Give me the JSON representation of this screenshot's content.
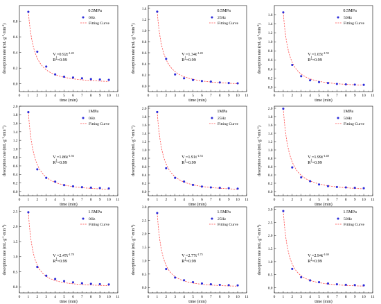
{
  "chart_data": [
    {
      "type": "scatter",
      "pressure": "0.5MPa",
      "frequency": "0Hz",
      "ylim": [
        -0.1,
        1.0
      ],
      "yticks": [
        "0.0",
        "0.2",
        "0.4",
        "0.6",
        "0.8"
      ],
      "ytick_values": [
        0,
        0.2,
        0.4,
        0.6,
        0.8
      ],
      "x": [
        1,
        2,
        3,
        4,
        5,
        6,
        7,
        8,
        9,
        10
      ],
      "y": [
        0.92,
        0.41,
        0.22,
        0.12,
        0.09,
        0.08,
        0.07,
        0.06,
        0.055,
        0.05
      ],
      "fit_a": 0.92,
      "fit_b": 1.49,
      "fit_label": {
        "v": "V",
        "sub": "t",
        "mid": "=0.92t",
        "sup": "-1.49"
      },
      "r2_label": {
        "r": "R",
        "sup": "2",
        "rest": "=0.99"
      }
    },
    {
      "type": "scatter",
      "pressure": "0.5MPa",
      "frequency": "25Hz",
      "ylim": [
        -0.1,
        1.45
      ],
      "yticks": [
        "0.0",
        "0.2",
        "0.4",
        "0.6",
        "0.8",
        "1.0",
        "1.2",
        "1.4"
      ],
      "ytick_values": [
        0,
        0.2,
        0.4,
        0.6,
        0.8,
        1.0,
        1.2,
        1.4
      ],
      "x": [
        1,
        2,
        3,
        4,
        5,
        6,
        7,
        8,
        9,
        10
      ],
      "y": [
        1.34,
        0.49,
        0.21,
        0.14,
        0.11,
        0.09,
        0.08,
        0.065,
        0.055,
        0.05
      ],
      "fit_a": 1.34,
      "fit_b": 1.49,
      "fit_label": {
        "v": "V",
        "sub": "t",
        "mid": "=1.34t",
        "sup": "-1.49"
      },
      "r2_label": {
        "r": "R",
        "sup": "2",
        "rest": "=0.99"
      }
    },
    {
      "type": "scatter",
      "pressure": "0.5MPa",
      "frequency": "50Hz",
      "ylim": [
        -0.1,
        1.8
      ],
      "yticks": [
        "0.0",
        "0.2",
        "0.4",
        "0.6",
        "0.8",
        "1.0",
        "1.2",
        "1.4",
        "1.6"
      ],
      "ytick_values": [
        0,
        0.2,
        0.4,
        0.6,
        0.8,
        1.0,
        1.2,
        1.4,
        1.6
      ],
      "x": [
        1,
        2,
        3,
        4,
        5,
        6,
        7,
        8,
        9,
        10
      ],
      "y": [
        1.65,
        0.49,
        0.24,
        0.15,
        0.11,
        0.09,
        0.07,
        0.06,
        0.055,
        0.05
      ],
      "fit_a": 1.65,
      "fit_b": 1.59,
      "fit_label": {
        "v": "V",
        "sub": "t",
        "mid": "=1.65t",
        "sup": "-1.59"
      },
      "r2_label": {
        "r": "R",
        "sup": "2",
        "rest": "=0.99"
      }
    },
    {
      "type": "scatter",
      "pressure": "1MPa",
      "frequency": "0Hz",
      "ylim": [
        -0.1,
        2.0
      ],
      "yticks": [
        "0.0",
        "0.2",
        "0.4",
        "0.6",
        "0.8",
        "1.0",
        "1.2",
        "1.4",
        "1.6",
        "1.8",
        "2.0"
      ],
      "ytick_values": [
        0,
        0.2,
        0.4,
        0.6,
        0.8,
        1.0,
        1.2,
        1.4,
        1.6,
        1.8,
        2.0
      ],
      "x": [
        1,
        2,
        3,
        4,
        5,
        6,
        7,
        8,
        9,
        10
      ],
      "y": [
        1.86,
        0.52,
        0.32,
        0.23,
        0.15,
        0.12,
        0.1,
        0.09,
        0.08,
        0.07
      ],
      "fit_a": 1.86,
      "fit_b": 1.56,
      "fit_label": {
        "v": "V",
        "sub": "t",
        "mid": "=1.86t",
        "sup": "-1.56"
      },
      "r2_label": {
        "r": "R",
        "sup": "2",
        "rest": "=0.99"
      }
    },
    {
      "type": "scatter",
      "pressure": "1MPa",
      "frequency": "25Hz",
      "ylim": [
        -0.1,
        2.05
      ],
      "yticks": [
        "0.0",
        "0.2",
        "0.4",
        "0.6",
        "0.8",
        "1.0",
        "1.2",
        "1.4",
        "1.6",
        "1.8",
        "2.0"
      ],
      "ytick_values": [
        0,
        0.2,
        0.4,
        0.6,
        0.8,
        1.0,
        1.2,
        1.4,
        1.6,
        1.8,
        2.0
      ],
      "x": [
        1,
        2,
        3,
        4,
        5,
        6,
        7,
        8,
        9,
        10
      ],
      "y": [
        1.91,
        0.56,
        0.33,
        0.24,
        0.16,
        0.12,
        0.1,
        0.09,
        0.08,
        0.07
      ],
      "fit_a": 1.91,
      "fit_b": 1.53,
      "fit_label": {
        "v": "V",
        "sub": "t",
        "mid": "=1.91t",
        "sup": "-1.53"
      },
      "r2_label": {
        "r": "R",
        "sup": "2",
        "rest": "=0.99"
      }
    },
    {
      "type": "scatter",
      "pressure": "1MPa",
      "frequency": "50Hz",
      "ylim": [
        -0.1,
        2.05
      ],
      "yticks": [
        "0.0",
        "0.2",
        "0.4",
        "0.6",
        "0.8",
        "1.0",
        "1.2",
        "1.4",
        "1.6",
        "1.8",
        "2.0"
      ],
      "ytick_values": [
        0,
        0.2,
        0.4,
        0.6,
        0.8,
        1.0,
        1.2,
        1.4,
        1.6,
        1.8,
        2.0
      ],
      "x": [
        1,
        2,
        3,
        4,
        5,
        6,
        7,
        8,
        9,
        10
      ],
      "y": [
        1.99,
        0.58,
        0.34,
        0.25,
        0.17,
        0.13,
        0.11,
        0.1,
        0.09,
        0.08
      ],
      "fit_a": 1.99,
      "fit_b": 1.48,
      "fit_label": {
        "v": "V",
        "sub": "t",
        "mid": "=1.99t",
        "sup": "-1.48"
      },
      "r2_label": {
        "r": "R",
        "sup": "2",
        "rest": "=0.99"
      }
    },
    {
      "type": "scatter",
      "pressure": "1.5MPa",
      "frequency": "0Hz",
      "ylim": [
        -0.2,
        2.65
      ],
      "yticks": [
        "0.0",
        "0.5",
        "1.0",
        "1.5",
        "2.0",
        "2.5"
      ],
      "ytick_values": [
        0,
        0.5,
        1.0,
        1.5,
        2.0,
        2.5
      ],
      "x": [
        1,
        2,
        3,
        4,
        5,
        6,
        7,
        8,
        9,
        10
      ],
      "y": [
        2.47,
        0.66,
        0.37,
        0.26,
        0.19,
        0.15,
        0.12,
        0.1,
        0.09,
        0.08
      ],
      "fit_a": 2.47,
      "fit_b": 1.78,
      "fit_label": {
        "v": "V",
        "sub": "t",
        "mid": "=2.47t",
        "sup": "-1.78"
      },
      "r2_label": {
        "r": "R",
        "sup": "2",
        "rest": "=0.99"
      }
    },
    {
      "type": "scatter",
      "pressure": "1.5MPa",
      "frequency": "25Hz",
      "ylim": [
        -0.2,
        3.0
      ],
      "yticks": [
        "0.0",
        "0.5",
        "1.0",
        "1.5",
        "2.0",
        "2.5",
        "3.0"
      ],
      "ytick_values": [
        0,
        0.5,
        1.0,
        1.5,
        2.0,
        2.5,
        3.0
      ],
      "x": [
        1,
        2,
        3,
        4,
        5,
        6,
        7,
        8,
        9,
        10
      ],
      "y": [
        2.77,
        0.69,
        0.37,
        0.27,
        0.2,
        0.15,
        0.12,
        0.1,
        0.09,
        0.08
      ],
      "fit_a": 2.77,
      "fit_b": 1.75,
      "fit_label": {
        "v": "V",
        "sub": "t",
        "mid": "=2.77t",
        "sup": "-1.75"
      },
      "r2_label": {
        "r": "R",
        "sup": "2",
        "rest": "=0.99"
      }
    },
    {
      "type": "scatter",
      "pressure": "1.5MPa",
      "frequency": "50Hz",
      "ylim": [
        -0.2,
        3.1
      ],
      "yticks": [
        "0.0",
        "0.5",
        "1.0",
        "1.5",
        "2.0",
        "2.5",
        "3.0"
      ],
      "ytick_values": [
        0,
        0.5,
        1.0,
        1.5,
        2.0,
        2.5,
        3.0
      ],
      "x": [
        1,
        2,
        3,
        4,
        5,
        6,
        7,
        8,
        9,
        10
      ],
      "y": [
        2.94,
        0.72,
        0.4,
        0.28,
        0.21,
        0.16,
        0.13,
        0.11,
        0.1,
        0.09
      ],
      "fit_a": 2.94,
      "fit_b": 1.69,
      "fit_label": {
        "v": "V",
        "sub": "t",
        "mid": "=2.94t",
        "sup": "-1.69"
      },
      "r2_label": {
        "r": "R",
        "sup": "2",
        "rest": "=0.99"
      }
    }
  ],
  "shared": {
    "xlabel": "time (min)",
    "ylabel_text": "desorption rate (mL·g",
    "ylabel_sup1": "-1",
    "ylabel_mid": "·min",
    "ylabel_sup2": "-1",
    "ylabel_end": ")",
    "xlim": [
      0,
      11
    ],
    "xticks": [
      "0",
      "1",
      "2",
      "3",
      "4",
      "5",
      "6",
      "7",
      "8",
      "9",
      "10",
      "11"
    ],
    "xtick_values": [
      0,
      1,
      2,
      3,
      4,
      5,
      6,
      7,
      8,
      9,
      10,
      11
    ],
    "legend_fit": "Fitting Curve",
    "point_color": "#2a2ad8",
    "curve_color": "#ff4a4a"
  }
}
